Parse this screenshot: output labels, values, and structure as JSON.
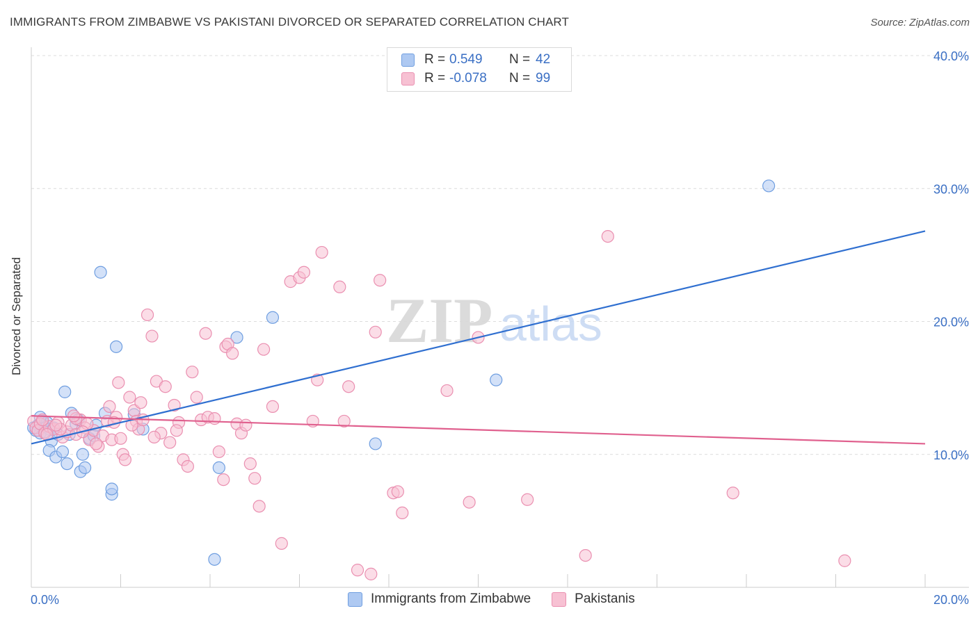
{
  "header": {
    "title": "IMMIGRANTS FROM ZIMBABWE VS PAKISTANI DIVORCED OR SEPARATED CORRELATION CHART",
    "source": "Source: ZipAtlas.com"
  },
  "watermark": {
    "zip": "ZIP",
    "atlas": "atlas"
  },
  "legend": {
    "rows": [
      {
        "r_label": "R =",
        "r_value": "0.549",
        "n_label": "N =",
        "n_value": "42",
        "color": "#aec9f2",
        "border": "#6f9ee0"
      },
      {
        "r_label": "R =",
        "r_value": "-0.078",
        "n_label": "N =",
        "n_value": "99",
        "color": "#f7c1d3",
        "border": "#ea8fb0"
      }
    ]
  },
  "bottom_legend": [
    {
      "label": "Immigrants from Zimbabwe",
      "color": "#aec9f2",
      "border": "#6f9ee0"
    },
    {
      "label": "Pakistanis",
      "color": "#f7c1d3",
      "border": "#ea8fb0"
    }
  ],
  "chart_data": {
    "type": "scatter",
    "title": "IMMIGRANTS FROM ZIMBABWE VS PAKISTANI DIVORCED OR SEPARATED CORRELATION CHART",
    "xlabel": "",
    "ylabel": "Divorced or Separated",
    "xlim": [
      0,
      20
    ],
    "ylim": [
      0,
      40
    ],
    "x_tick_labels": [
      "0.0%",
      "20.0%"
    ],
    "y_tick_labels": [
      "10.0%",
      "20.0%",
      "30.0%",
      "40.0%"
    ],
    "y_ticks": [
      10,
      20,
      30,
      40
    ],
    "grid": true,
    "legend_position": "top-center",
    "series": [
      {
        "name": "Immigrants from Zimbabwe",
        "color": "#6f9ee0",
        "fill": "#aec9f2",
        "trend_color": "#2f6fd0",
        "trend": [
          [
            0,
            10.8
          ],
          [
            20,
            26.8
          ]
        ],
        "points": [
          [
            0.1,
            11.8
          ],
          [
            0.15,
            12.2
          ],
          [
            0.2,
            11.6
          ],
          [
            0.25,
            12.5
          ],
          [
            0.3,
            12.1
          ],
          [
            0.35,
            12.4
          ],
          [
            0.4,
            11.9
          ],
          [
            0.45,
            11.0
          ],
          [
            0.5,
            12.0
          ],
          [
            0.4,
            10.3
          ],
          [
            0.55,
            9.8
          ],
          [
            0.6,
            11.5
          ],
          [
            0.7,
            10.2
          ],
          [
            0.75,
            14.7
          ],
          [
            0.8,
            9.3
          ],
          [
            0.85,
            11.5
          ],
          [
            0.9,
            13.1
          ],
          [
            1.0,
            12.3
          ],
          [
            1.05,
            12.6
          ],
          [
            1.1,
            8.7
          ],
          [
            1.15,
            10.0
          ],
          [
            1.2,
            9.0
          ],
          [
            1.3,
            11.2
          ],
          [
            1.4,
            11.4
          ],
          [
            1.45,
            12.2
          ],
          [
            1.55,
            23.7
          ],
          [
            1.65,
            13.1
          ],
          [
            1.8,
            7.0
          ],
          [
            1.8,
            7.4
          ],
          [
            1.9,
            18.1
          ],
          [
            2.3,
            13.0
          ],
          [
            2.5,
            11.9
          ],
          [
            4.1,
            2.1
          ],
          [
            4.2,
            9.0
          ],
          [
            4.6,
            18.8
          ],
          [
            5.4,
            20.3
          ],
          [
            7.7,
            10.8
          ],
          [
            10.4,
            15.6
          ],
          [
            16.5,
            30.2
          ],
          [
            0.05,
            12.0
          ],
          [
            0.2,
            12.8
          ],
          [
            0.3,
            11.7
          ]
        ]
      },
      {
        "name": "Pakistanis",
        "color": "#ea8fb0",
        "fill": "#f7c1d3",
        "trend_color": "#e0608e",
        "trend": [
          [
            0,
            12.9
          ],
          [
            20,
            10.8
          ]
        ],
        "points": [
          [
            0.05,
            12.5
          ],
          [
            0.1,
            12.0
          ],
          [
            0.15,
            11.8
          ],
          [
            0.2,
            12.3
          ],
          [
            0.3,
            11.6
          ],
          [
            0.4,
            12.1
          ],
          [
            0.5,
            11.9
          ],
          [
            0.6,
            12.4
          ],
          [
            0.7,
            11.3
          ],
          [
            0.8,
            11.7
          ],
          [
            0.9,
            12.2
          ],
          [
            1.0,
            11.5
          ],
          [
            1.1,
            12.6
          ],
          [
            1.2,
            12.0
          ],
          [
            1.3,
            11.1
          ],
          [
            1.4,
            11.8
          ],
          [
            1.5,
            10.6
          ],
          [
            1.6,
            11.4
          ],
          [
            1.7,
            12.5
          ],
          [
            1.75,
            13.6
          ],
          [
            1.8,
            11.1
          ],
          [
            1.9,
            12.8
          ],
          [
            1.95,
            15.4
          ],
          [
            2.0,
            11.2
          ],
          [
            2.05,
            10.0
          ],
          [
            2.1,
            9.6
          ],
          [
            2.2,
            14.3
          ],
          [
            2.3,
            13.3
          ],
          [
            2.35,
            12.5
          ],
          [
            2.4,
            11.9
          ],
          [
            2.45,
            13.9
          ],
          [
            2.5,
            12.6
          ],
          [
            2.6,
            20.5
          ],
          [
            2.7,
            18.9
          ],
          [
            2.8,
            15.5
          ],
          [
            2.9,
            11.6
          ],
          [
            3.0,
            15.1
          ],
          [
            3.1,
            10.9
          ],
          [
            3.2,
            13.7
          ],
          [
            3.3,
            12.4
          ],
          [
            3.4,
            9.6
          ],
          [
            3.5,
            9.1
          ],
          [
            3.6,
            16.2
          ],
          [
            3.7,
            14.3
          ],
          [
            3.8,
            12.6
          ],
          [
            3.9,
            19.1
          ],
          [
            3.95,
            12.8
          ],
          [
            4.1,
            12.7
          ],
          [
            4.2,
            10.2
          ],
          [
            4.3,
            8.1
          ],
          [
            4.35,
            18.1
          ],
          [
            4.4,
            18.3
          ],
          [
            4.5,
            17.6
          ],
          [
            4.6,
            12.3
          ],
          [
            4.7,
            11.6
          ],
          [
            4.8,
            12.2
          ],
          [
            4.9,
            9.3
          ],
          [
            5.0,
            8.2
          ],
          [
            5.1,
            6.1
          ],
          [
            5.2,
            17.9
          ],
          [
            5.4,
            13.6
          ],
          [
            5.6,
            3.3
          ],
          [
            5.8,
            23.0
          ],
          [
            6.0,
            23.3
          ],
          [
            6.1,
            23.7
          ],
          [
            6.3,
            12.5
          ],
          [
            6.4,
            15.6
          ],
          [
            6.5,
            25.2
          ],
          [
            6.9,
            22.6
          ],
          [
            7.0,
            12.5
          ],
          [
            7.1,
            15.1
          ],
          [
            7.3,
            1.3
          ],
          [
            7.6,
            1.0
          ],
          [
            7.7,
            19.2
          ],
          [
            7.8,
            23.1
          ],
          [
            8.1,
            7.1
          ],
          [
            8.2,
            7.2
          ],
          [
            8.3,
            5.6
          ],
          [
            9.3,
            14.8
          ],
          [
            9.8,
            6.4
          ],
          [
            10.0,
            18.8
          ],
          [
            11.1,
            6.6
          ],
          [
            12.4,
            2.4
          ],
          [
            12.9,
            26.4
          ],
          [
            15.7,
            7.1
          ],
          [
            18.2,
            2.0
          ],
          [
            1.0,
            12.7
          ],
          [
            0.35,
            11.5
          ],
          [
            0.65,
            11.9
          ],
          [
            0.95,
            12.9
          ],
          [
            1.25,
            12.3
          ],
          [
            1.45,
            10.8
          ],
          [
            2.25,
            12.2
          ],
          [
            2.75,
            11.3
          ],
          [
            3.25,
            11.8
          ],
          [
            1.85,
            12.4
          ],
          [
            0.25,
            12.6
          ],
          [
            0.55,
            12.2
          ],
          [
            1.15,
            11.7
          ]
        ]
      }
    ]
  }
}
